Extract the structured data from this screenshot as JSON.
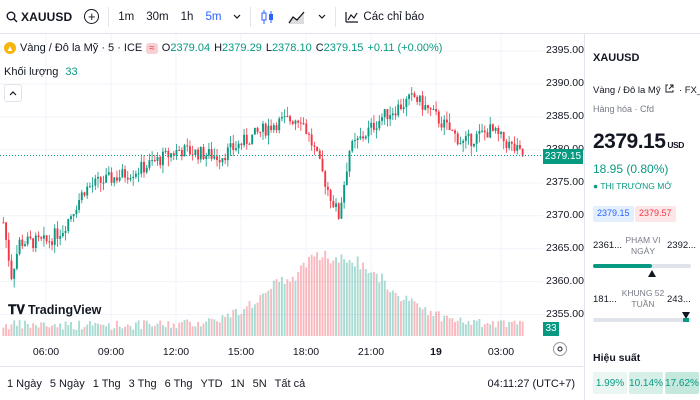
{
  "toolbar": {
    "symbol": "XAUUSD",
    "intervals": [
      "1m",
      "30m",
      "1h",
      "5m"
    ],
    "active_interval": "5m",
    "indicators_label": "Các chỉ báo"
  },
  "legend": {
    "title": "Vàng / Đô la Mỹ · 5 · ICE",
    "o_label": "O",
    "o": "2379.04",
    "h_label": "H",
    "h": "2379.29",
    "l_label": "L",
    "l": "2378.10",
    "c_label": "C",
    "c": "2379.15",
    "change": "+0.11 (+0.00%)",
    "volume_label": "Khối lượng",
    "volume_value": "33"
  },
  "watermark": "TradingView",
  "chart_data": {
    "type": "candlestick",
    "title": "Vàng / Đô la Mỹ · 5 · ICE",
    "y_ticks": [
      "2395.00",
      "2390.00",
      "2385.00",
      "2380.00",
      "2375.00",
      "2370.00",
      "2365.00",
      "2360.00",
      "2355.00"
    ],
    "ylim": [
      2352.5,
      2397
    ],
    "x_ticks": [
      "06:00",
      "09:00",
      "12:00",
      "15:00",
      "18:00",
      "21:00",
      "19",
      "03:00"
    ],
    "last_price": "2379.15",
    "last_volume": "33",
    "anchors": [
      [
        0,
        2369,
        2365
      ],
      [
        3,
        2361,
        2361
      ],
      [
        6,
        2366,
        2366
      ],
      [
        16,
        2366,
        2366
      ],
      [
        22,
        2368,
        2368
      ],
      [
        30,
        2374,
        2374
      ],
      [
        35,
        2375,
        2375
      ],
      [
        50,
        2377,
        2377
      ],
      [
        65,
        2380,
        2380
      ],
      [
        80,
        2379,
        2379
      ],
      [
        100,
        2384,
        2384
      ],
      [
        110,
        2385,
        2385
      ],
      [
        115,
        2380,
        2380
      ],
      [
        120,
        2374,
        2374
      ],
      [
        124,
        2370,
        2370
      ],
      [
        128,
        2380,
        2380
      ],
      [
        140,
        2385,
        2385
      ],
      [
        152,
        2388,
        2388
      ],
      [
        160,
        2385,
        2385
      ],
      [
        170,
        2381,
        2381
      ],
      [
        180,
        2383,
        2383
      ],
      [
        192,
        2379.15,
        2379.15
      ]
    ]
  },
  "price_axis": {
    "ticks": [
      "2395.00",
      "2390.00",
      "2385.00",
      "2380.00",
      "2375.00",
      "2370.00",
      "2365.00",
      "2360.00",
      "2355.00"
    ],
    "last_price_tag": "2379.15",
    "volume_tag": "33"
  },
  "time_axis": [
    "06:00",
    "09:00",
    "12:00",
    "15:00",
    "18:00",
    "21:00",
    "19",
    "03:00"
  ],
  "range_buttons": [
    "1 Ngày",
    "5 Ngày",
    "1 Thg",
    "3 Thg",
    "6 Thg",
    "YTD",
    "1N",
    "5N",
    "Tất cả"
  ],
  "clock": "04:11:27 (UTC+7)",
  "panel": {
    "symbol": "XAUUSD",
    "name": "Vàng / Đô la Mỹ",
    "exchange": "FX_IDC",
    "category": "Hàng hóa · Cfd",
    "price": "2379.15",
    "currency": "USD",
    "change": "18.95 (0.80%)",
    "market_status": "THỊ TRƯỜNG MỞ",
    "bid": "2379.15",
    "ask": "2379.57",
    "day_range_label": "PHẠM VI NGÀY",
    "day_low": "2361...",
    "day_high": "2392...",
    "week52_label": "KHUNG 52 TUẦN",
    "week52_low": "181...",
    "week52_high": "243...",
    "day_range_pos": 0.6,
    "week52_pos": 0.95,
    "performance_label": "Hiệu suất",
    "performance": [
      "1.99%",
      "10.14%",
      "17.62%"
    ],
    "colors": {
      "up": "#089981",
      "down": "#f23645",
      "accent": "#2962ff"
    }
  }
}
